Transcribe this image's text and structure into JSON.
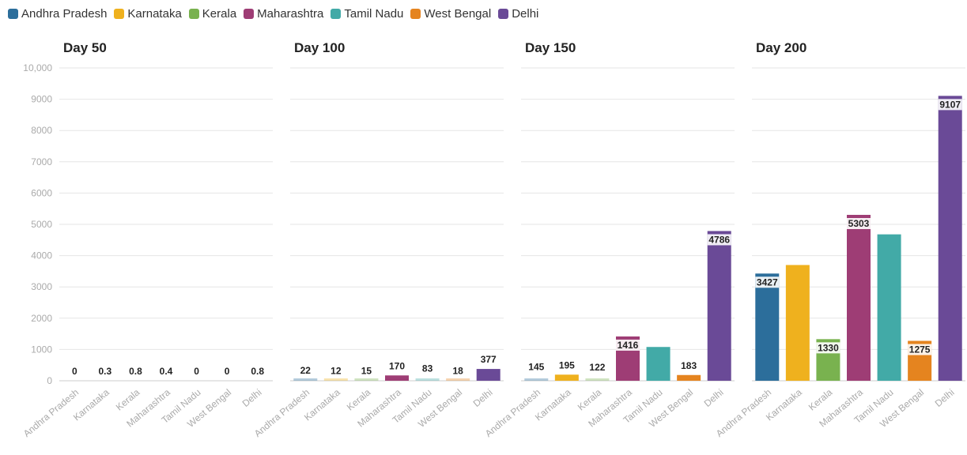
{
  "chart_data": {
    "type": "bar",
    "categories": [
      "Andhra Pradesh",
      "Karnataka",
      "Kerala",
      "Maharashtra",
      "Tamil Nadu",
      "West Bengal",
      "Delhi"
    ],
    "colors": [
      "#2c6e9b",
      "#efb11e",
      "#79b24f",
      "#9e3d75",
      "#42aaa7",
      "#e5841f",
      "#6a4a97"
    ],
    "legend_position": "top-left",
    "ylim": [
      0,
      10000
    ],
    "y_ticks": [
      "0",
      "1000",
      "2000",
      "3000",
      "4000",
      "5000",
      "6000",
      "7000",
      "8000",
      "9000",
      "10,000"
    ],
    "y_tick_values": [
      0,
      1000,
      2000,
      3000,
      4000,
      5000,
      6000,
      7000,
      8000,
      9000,
      10000
    ],
    "grid": true,
    "panels": [
      {
        "title": "Day 50",
        "values": [
          0,
          0.3,
          0.8,
          0.4,
          0,
          0,
          0.8
        ],
        "labels": [
          "0",
          "0.3",
          "0.8",
          "0.4",
          "0",
          "0",
          "0.8"
        ]
      },
      {
        "title": "Day 100",
        "values": [
          22,
          12,
          15,
          170,
          83,
          18,
          377
        ],
        "labels": [
          "22",
          "12",
          "15",
          "170",
          "83",
          "18",
          "377"
        ]
      },
      {
        "title": "Day 150",
        "values": [
          145,
          195,
          122,
          1416,
          1080,
          183,
          4786
        ],
        "labels": [
          "145",
          "195",
          "122",
          "1416",
          "",
          "183",
          "4786"
        ]
      },
      {
        "title": "Day 200",
        "values": [
          3427,
          3700,
          1330,
          5303,
          4680,
          1275,
          9107
        ],
        "labels": [
          "3427",
          "",
          "1330",
          "5303",
          "",
          "1275",
          "9107"
        ]
      }
    ]
  }
}
